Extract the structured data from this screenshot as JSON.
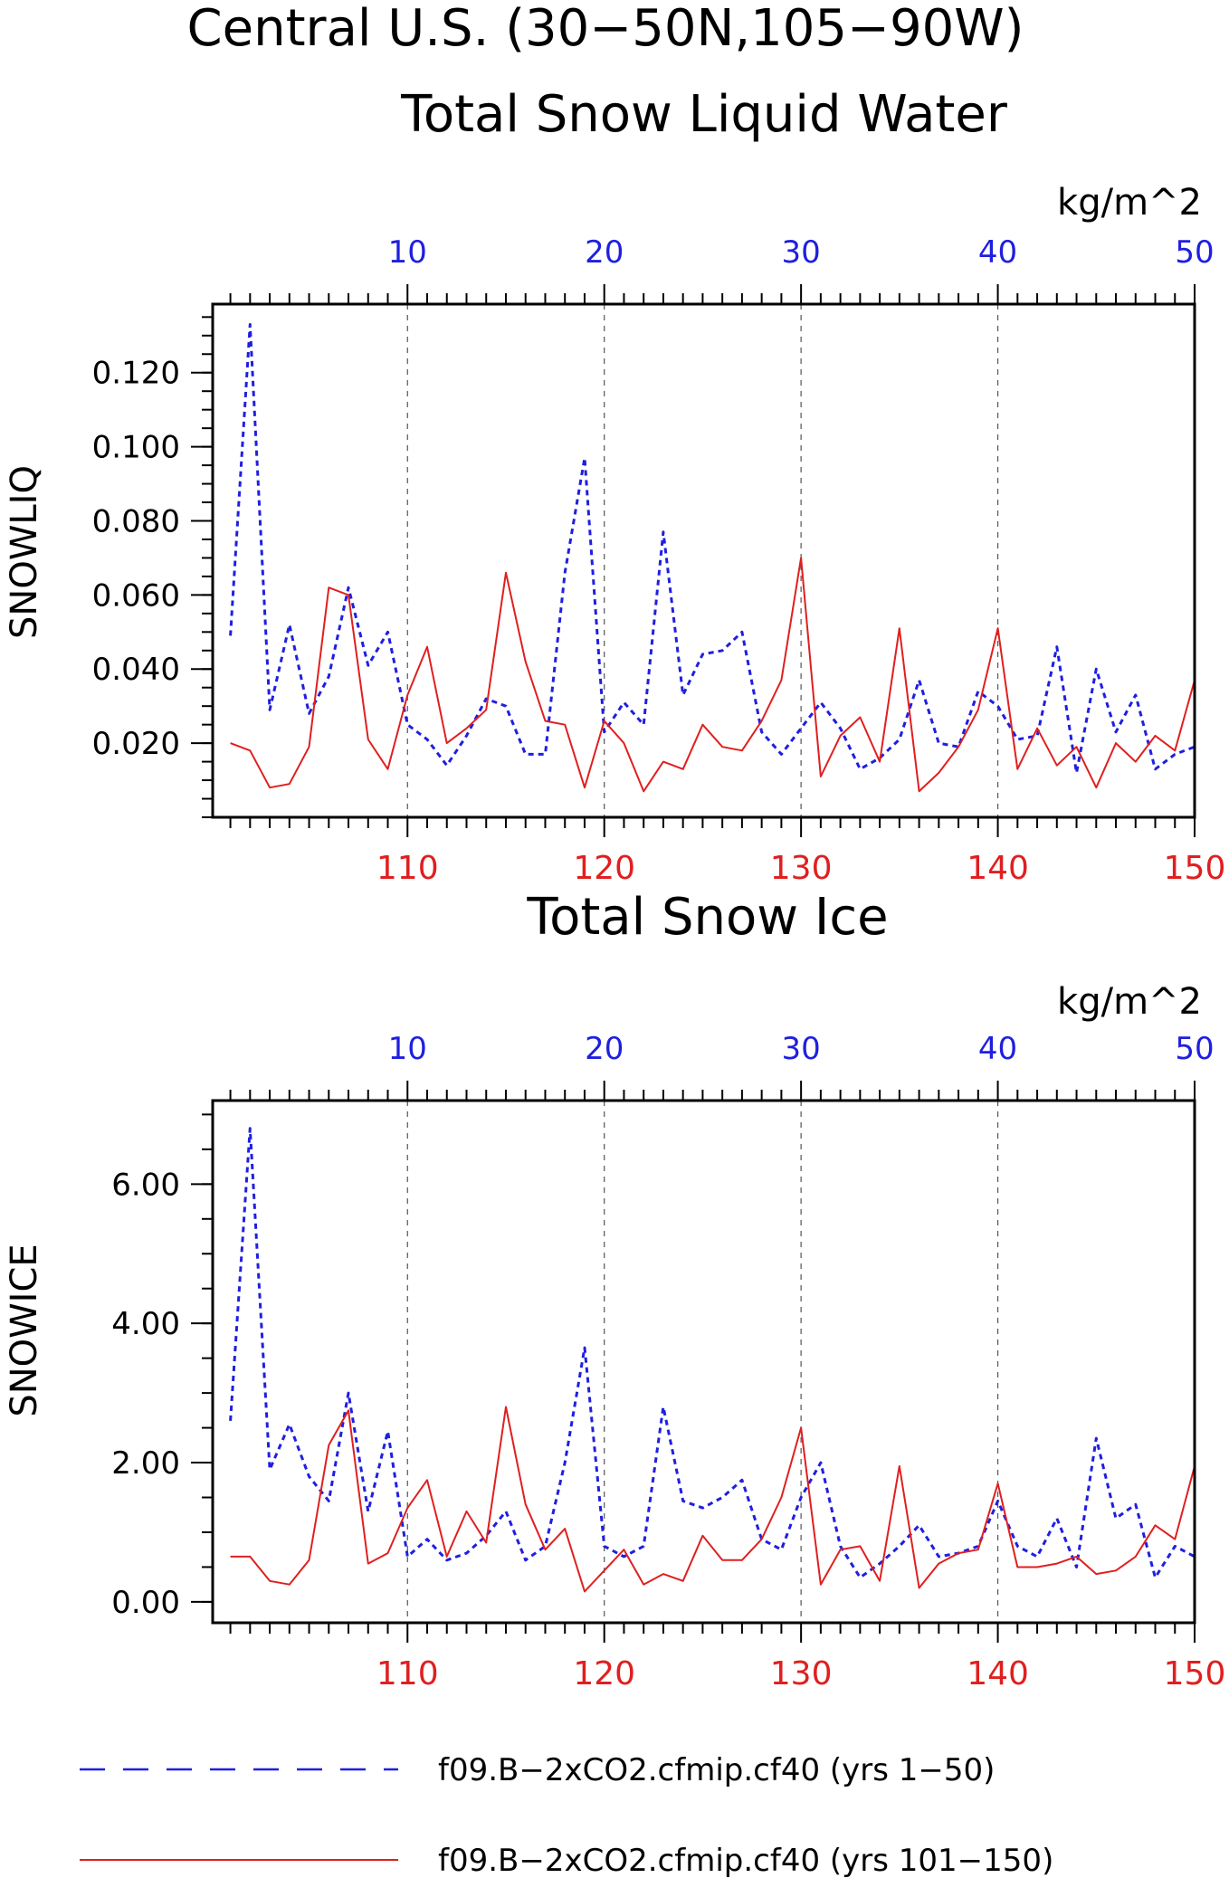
{
  "header": {
    "title_line1": "Central U.S. (30−50N,105−90W)"
  },
  "colors": {
    "series_a": "#1f1fe0",
    "series_b": "#e01f1f",
    "axis": "#000000",
    "grid": "#555555"
  },
  "legend": [
    {
      "label": "f09.B−2xCO2.cfmip.cf40 (yrs 1−50)",
      "style": "dashed",
      "color": "#1f1fe0"
    },
    {
      "label": "f09.B−2xCO2.cfmip.cf40 (yrs 101−150)",
      "style": "solid",
      "color": "#e01f1f"
    }
  ],
  "chart_data": [
    {
      "type": "line",
      "title": "Total Snow Liquid Water",
      "ylabel": "SNOWLIQ",
      "units": "kg/m^2",
      "ylim": [
        0.0,
        0.1385
      ],
      "yticks": [
        0.02,
        0.04,
        0.06,
        0.08,
        0.1,
        0.12
      ],
      "ytick_labels": [
        "0.020",
        "0.040",
        "0.060",
        "0.080",
        "0.100",
        "0.120"
      ],
      "top_axis": {
        "range": [
          1,
          50
        ],
        "ticks": [
          10,
          20,
          30,
          40,
          50
        ],
        "color": "#1f1fe0"
      },
      "bottom_axis": {
        "range": [
          101,
          150
        ],
        "ticks": [
          110,
          120,
          130,
          140,
          150
        ],
        "color": "#e01f1f"
      },
      "grid": "vertical dashed at major ticks",
      "series": [
        {
          "axis": "top",
          "style": "dashed",
          "color": "#1f1fe0",
          "values": [
            0.049,
            0.133,
            0.029,
            0.052,
            0.028,
            0.038,
            0.062,
            0.041,
            0.05,
            0.025,
            0.021,
            0.014,
            0.022,
            0.032,
            0.03,
            0.017,
            0.017,
            0.066,
            0.097,
            0.023,
            0.031,
            0.025,
            0.077,
            0.033,
            0.044,
            0.045,
            0.05,
            0.023,
            0.017,
            0.024,
            0.031,
            0.024,
            0.013,
            0.016,
            0.021,
            0.037,
            0.02,
            0.019,
            0.034,
            0.03,
            0.021,
            0.022,
            0.046,
            0.012,
            0.04,
            0.023,
            0.033,
            0.013,
            0.017,
            0.019
          ]
        },
        {
          "axis": "bottom",
          "style": "solid",
          "color": "#e01f1f",
          "values": [
            0.02,
            0.018,
            0.008,
            0.009,
            0.019,
            0.062,
            0.06,
            0.021,
            0.013,
            0.033,
            0.046,
            0.02,
            0.024,
            0.029,
            0.066,
            0.042,
            0.026,
            0.025,
            0.008,
            0.026,
            0.02,
            0.007,
            0.015,
            0.013,
            0.025,
            0.019,
            0.018,
            0.026,
            0.037,
            0.07,
            0.011,
            0.022,
            0.027,
            0.015,
            0.051,
            0.007,
            0.012,
            0.019,
            0.029,
            0.051,
            0.013,
            0.024,
            0.014,
            0.019,
            0.008,
            0.02,
            0.015,
            0.022,
            0.018,
            0.037
          ]
        }
      ]
    },
    {
      "type": "line",
      "title": "Total Snow Ice",
      "ylabel": "SNOWICE",
      "units": "kg/m^2",
      "ylim": [
        -0.3,
        7.2
      ],
      "yticks": [
        0.0,
        2.0,
        4.0,
        6.0
      ],
      "ytick_labels": [
        "0.00",
        "2.00",
        "4.00",
        "6.00"
      ],
      "top_axis": {
        "range": [
          1,
          50
        ],
        "ticks": [
          10,
          20,
          30,
          40,
          50
        ],
        "color": "#1f1fe0"
      },
      "bottom_axis": {
        "range": [
          101,
          150
        ],
        "ticks": [
          110,
          120,
          130,
          140,
          150
        ],
        "color": "#e01f1f"
      },
      "grid": "vertical dashed at major ticks",
      "series": [
        {
          "axis": "top",
          "style": "dashed",
          "color": "#1f1fe0",
          "values": [
            2.6,
            6.8,
            1.9,
            2.55,
            1.8,
            1.45,
            3.0,
            1.3,
            2.45,
            0.65,
            0.9,
            0.6,
            0.7,
            0.95,
            1.3,
            0.6,
            0.8,
            2.0,
            3.65,
            0.8,
            0.65,
            0.8,
            2.8,
            1.45,
            1.35,
            1.5,
            1.75,
            0.9,
            0.75,
            1.5,
            2.0,
            0.8,
            0.35,
            0.55,
            0.8,
            1.1,
            0.65,
            0.7,
            0.8,
            1.45,
            0.8,
            0.65,
            1.2,
            0.5,
            2.35,
            1.2,
            1.4,
            0.35,
            0.8,
            0.65
          ]
        },
        {
          "axis": "bottom",
          "style": "solid",
          "color": "#e01f1f",
          "values": [
            0.65,
            0.65,
            0.3,
            0.25,
            0.6,
            2.25,
            2.75,
            0.55,
            0.7,
            1.35,
            1.75,
            0.65,
            1.3,
            0.85,
            2.8,
            1.4,
            0.75,
            1.05,
            0.15,
            0.45,
            0.75,
            0.25,
            0.4,
            0.3,
            0.95,
            0.6,
            0.6,
            0.9,
            1.5,
            2.5,
            0.25,
            0.75,
            0.8,
            0.3,
            1.95,
            0.2,
            0.55,
            0.7,
            0.75,
            1.7,
            0.5,
            0.5,
            0.55,
            0.65,
            0.4,
            0.45,
            0.65,
            1.1,
            0.9,
            1.95
          ]
        }
      ]
    }
  ]
}
